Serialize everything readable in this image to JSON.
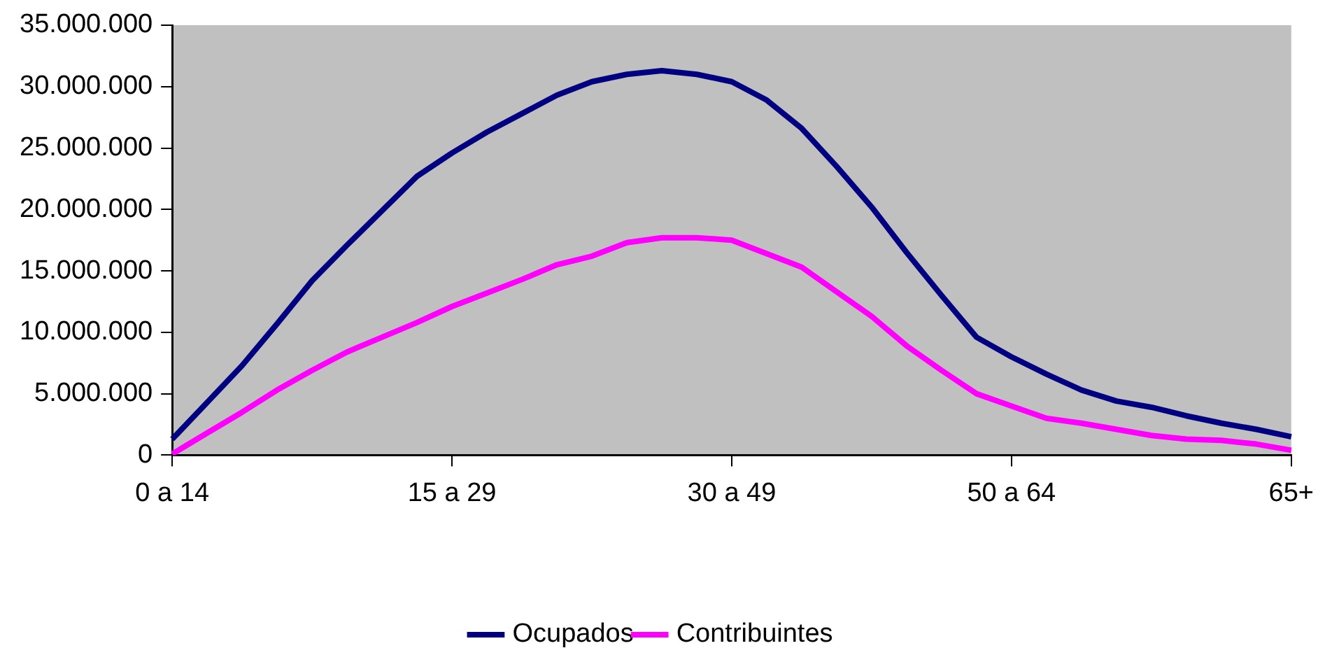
{
  "chart_data": {
    "type": "line",
    "categories": [
      "0 a 14",
      null,
      null,
      null,
      null,
      null,
      null,
      null,
      "15 a 29",
      null,
      null,
      null,
      null,
      null,
      null,
      null,
      "30 a 49",
      null,
      null,
      null,
      null,
      null,
      null,
      null,
      "50 a 64",
      null,
      null,
      null,
      null,
      null,
      null,
      null,
      "65+"
    ],
    "series": [
      {
        "name": "Ocupados",
        "color": "#000080",
        "values": [
          1300000,
          4300000,
          7300000,
          10700000,
          14200000,
          17100000,
          19900000,
          22700000,
          24600000,
          26300000,
          27800000,
          29300000,
          30400000,
          31000000,
          31300000,
          31000000,
          30400000,
          28900000,
          26600000,
          23500000,
          20200000,
          16500000,
          13000000,
          9600000,
          8000000,
          6600000,
          5300000,
          4400000,
          3900000,
          3200000,
          2600000,
          2100000,
          1500000
        ]
      },
      {
        "name": "Contribuintes",
        "color": "#ff00ff",
        "values": [
          100000,
          1800000,
          3500000,
          5300000,
          6900000,
          8400000,
          9600000,
          10800000,
          12100000,
          13200000,
          14300000,
          15500000,
          16200000,
          17300000,
          17700000,
          17700000,
          17500000,
          16400000,
          15300000,
          13300000,
          11300000,
          8900000,
          6900000,
          5000000,
          4000000,
          3000000,
          2600000,
          2100000,
          1600000,
          1300000,
          1200000,
          900000,
          400000
        ]
      }
    ],
    "ylim": [
      0,
      35000000
    ],
    "yticks": [
      {
        "value": 0,
        "label": "0"
      },
      {
        "value": 5000000,
        "label": "5.000.000"
      },
      {
        "value": 10000000,
        "label": "10.000.000"
      },
      {
        "value": 15000000,
        "label": "15.000.000"
      },
      {
        "value": 20000000,
        "label": "20.000.000"
      },
      {
        "value": 25000000,
        "label": "25.000.000"
      },
      {
        "value": 30000000,
        "label": "30.000.000"
      },
      {
        "value": 35000000,
        "label": "35.000.000"
      }
    ],
    "grid": false,
    "legend": "bottom",
    "marker": "none",
    "line_style": "solid"
  }
}
